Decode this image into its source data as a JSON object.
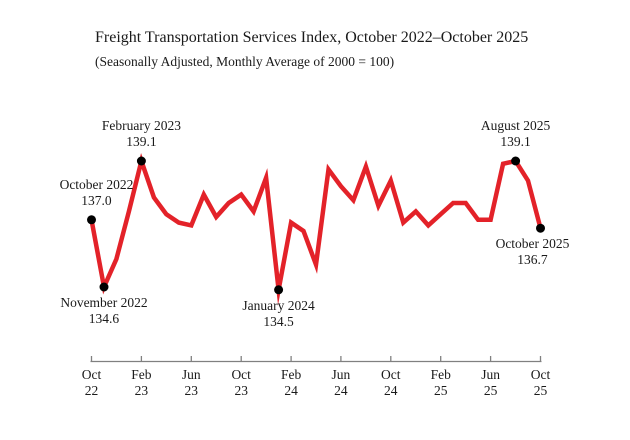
{
  "chart_data": {
    "type": "line",
    "title": "Freight Transportation Services Index, October 2022–October 2025",
    "subtitle": "(Seasonally Adjusted, Monthly Average of 2000 = 100)",
    "x": [
      "Oct 2022",
      "Nov 2022",
      "Dec 2022",
      "Jan 2023",
      "Feb 2023",
      "Mar 2023",
      "Apr 2023",
      "May 2023",
      "Jun 2023",
      "Jul 2023",
      "Aug 2023",
      "Sep 2023",
      "Oct 2023",
      "Nov 2023",
      "Dec 2023",
      "Jan 2024",
      "Feb 2024",
      "Mar 2024",
      "Apr 2024",
      "May 2024",
      "Jun 2024",
      "Jul 2024",
      "Aug 2024",
      "Sep 2024",
      "Oct 2024",
      "Nov 2024",
      "Dec 2024",
      "Jan 2025",
      "Feb 2025",
      "Mar 2025",
      "Apr 2025",
      "May 2025",
      "Jun 2025",
      "Jul 2025",
      "Aug 2025",
      "Sep 2025",
      "Oct 2025"
    ],
    "values": [
      137.0,
      134.6,
      135.6,
      137.3,
      139.1,
      137.8,
      137.2,
      136.9,
      136.8,
      137.9,
      137.1,
      137.6,
      137.9,
      137.3,
      138.5,
      134.5,
      136.9,
      136.6,
      135.4,
      138.8,
      138.2,
      137.7,
      138.9,
      137.5,
      138.4,
      136.9,
      137.3,
      136.8,
      137.2,
      137.6,
      137.6,
      137.0,
      137.0,
      139.0,
      139.1,
      138.4,
      136.7
    ],
    "ylim": [
      134,
      140
    ],
    "grid": false,
    "legend": null,
    "x_ticks": [
      {
        "month": "Oct",
        "year": "22",
        "month_index": 0
      },
      {
        "month": "Feb",
        "year": "23",
        "month_index": 4
      },
      {
        "month": "Jun",
        "year": "23",
        "month_index": 8
      },
      {
        "month": "Oct",
        "year": "23",
        "month_index": 12
      },
      {
        "month": "Feb",
        "year": "24",
        "month_index": 16
      },
      {
        "month": "Jun",
        "year": "24",
        "month_index": 20
      },
      {
        "month": "Oct",
        "year": "24",
        "month_index": 24
      },
      {
        "month": "Feb",
        "year": "25",
        "month_index": 28
      },
      {
        "month": "Jun",
        "year": "25",
        "month_index": 32
      },
      {
        "month": "Oct",
        "year": "25",
        "month_index": 36
      }
    ],
    "annotations": [
      {
        "label": "October 2022",
        "value": "137.0",
        "month_index": 0,
        "position": "above"
      },
      {
        "label": "November 2022",
        "value": "134.6",
        "month_index": 1,
        "position": "below"
      },
      {
        "label": "February 2023",
        "value": "139.1",
        "month_index": 4,
        "position": "above"
      },
      {
        "label": "January 2024",
        "value": "134.5",
        "month_index": 15,
        "position": "below"
      },
      {
        "label": "August 2025",
        "value": "139.1",
        "month_index": 34,
        "position": "above"
      },
      {
        "label": "October 2025",
        "value": "136.7",
        "month_index": 36,
        "position": "below"
      }
    ],
    "colors": {
      "line": "#e32229",
      "marker": "#000000",
      "axis": "#808080",
      "text": "#1a1a1a"
    }
  }
}
